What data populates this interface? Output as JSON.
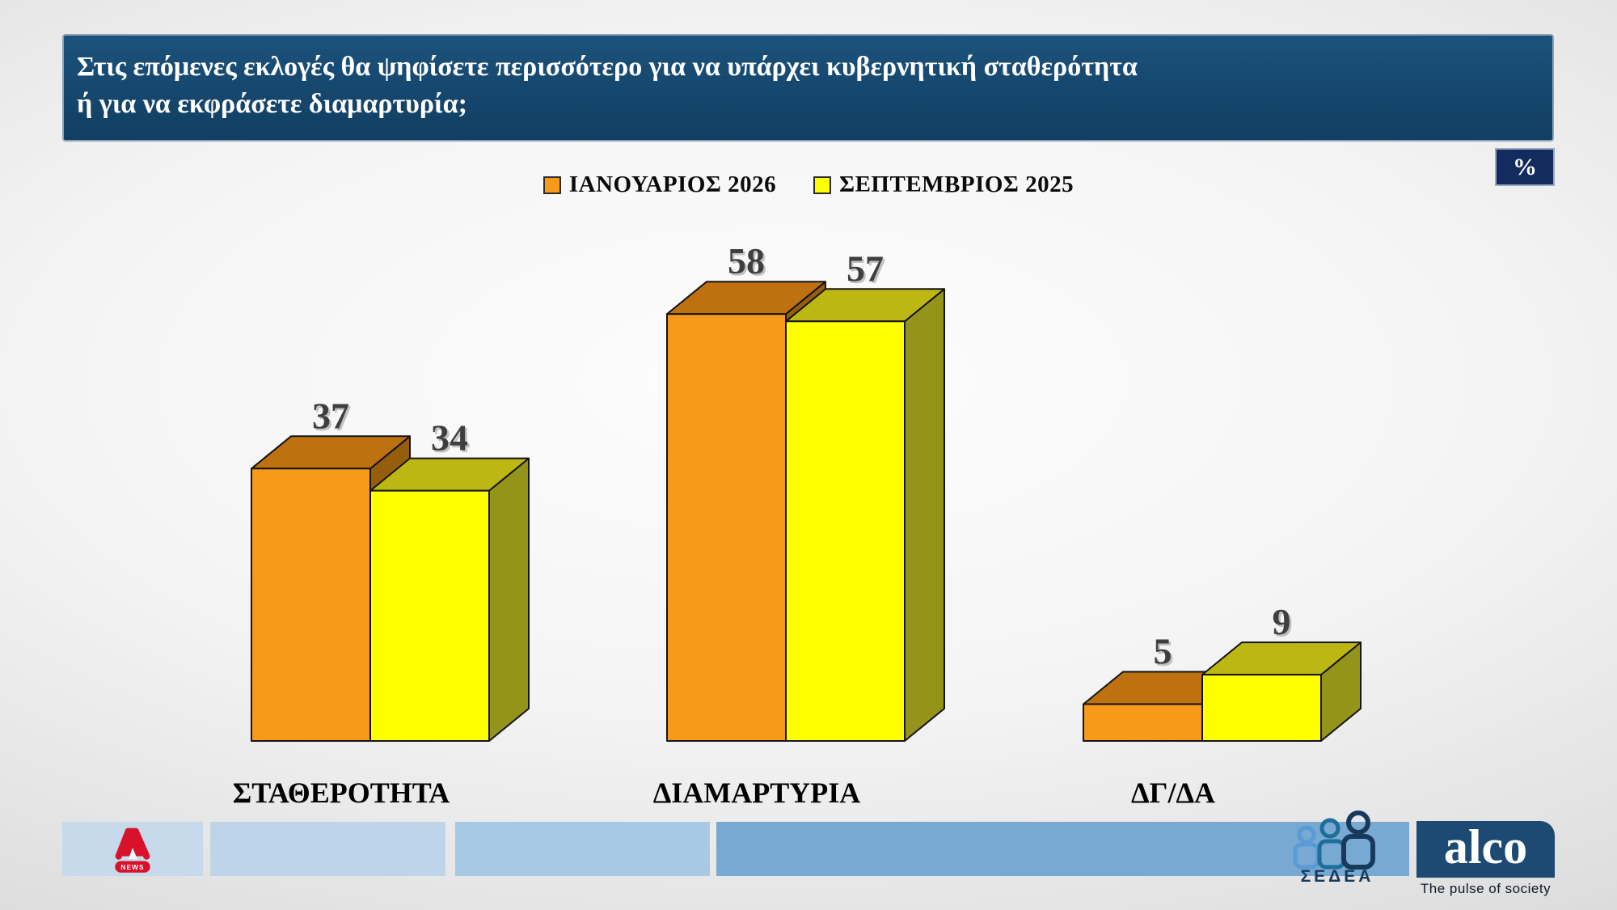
{
  "slide": {
    "title_line1": "Στις επόμενες εκλογές θα ψηφίσετε περισσότερο για να υπάρχει κυβερνητική σταθερότητα",
    "title_line2": "ή για να εκφράσετε διαμαρτυρία;",
    "unit_badge": "%",
    "banner_color": "#16476d"
  },
  "legend": {
    "items": [
      {
        "label": "ΙΑΝΟΥΑΡΙΟΣ 2026",
        "color": "#F79A1B"
      },
      {
        "label": "ΣΕΠΤΕΜΒΡΙΟΣ 2025",
        "color": "#FFFF00"
      }
    ]
  },
  "chart_data": {
    "type": "bar",
    "style": "3d-clustered",
    "categories": [
      "ΣΤΑΘΕΡΟΤΗΤΑ",
      "ΔΙΑΜΑΡΤΥΡΙΑ",
      "ΔΓ/ΔΑ"
    ],
    "series": [
      {
        "name": "ΙΑΝΟΥΑΡΙΟΣ 2026",
        "values": [
          37,
          58,
          5
        ],
        "front": "#F79A1B",
        "top": "#BE7110",
        "side": "#965D0C"
      },
      {
        "name": "ΣΕΠΤΕΜΒΡΙΟΣ 2025",
        "values": [
          34,
          57,
          9
        ],
        "front": "#FFFF00",
        "top": "#BDB713",
        "side": "#95941A"
      }
    ],
    "unit": "%",
    "ylim": [
      0,
      64
    ],
    "value_labels": true,
    "value_label_color": "#3F3F3F",
    "category_label_color": "#000000",
    "legend_position": "top",
    "axes_visible": false,
    "grid": false
  },
  "footer": {
    "alpha": {
      "news_label": "NEWS",
      "brand_color": "#D9122B"
    },
    "sedea": {
      "label": "ΣΕΔΕΑ",
      "dark": "#16395C",
      "mid": "#1E6E99",
      "light": "#5B9BD5"
    },
    "alco": {
      "wordmark": "alco",
      "tagline": "The pulse of society"
    }
  }
}
